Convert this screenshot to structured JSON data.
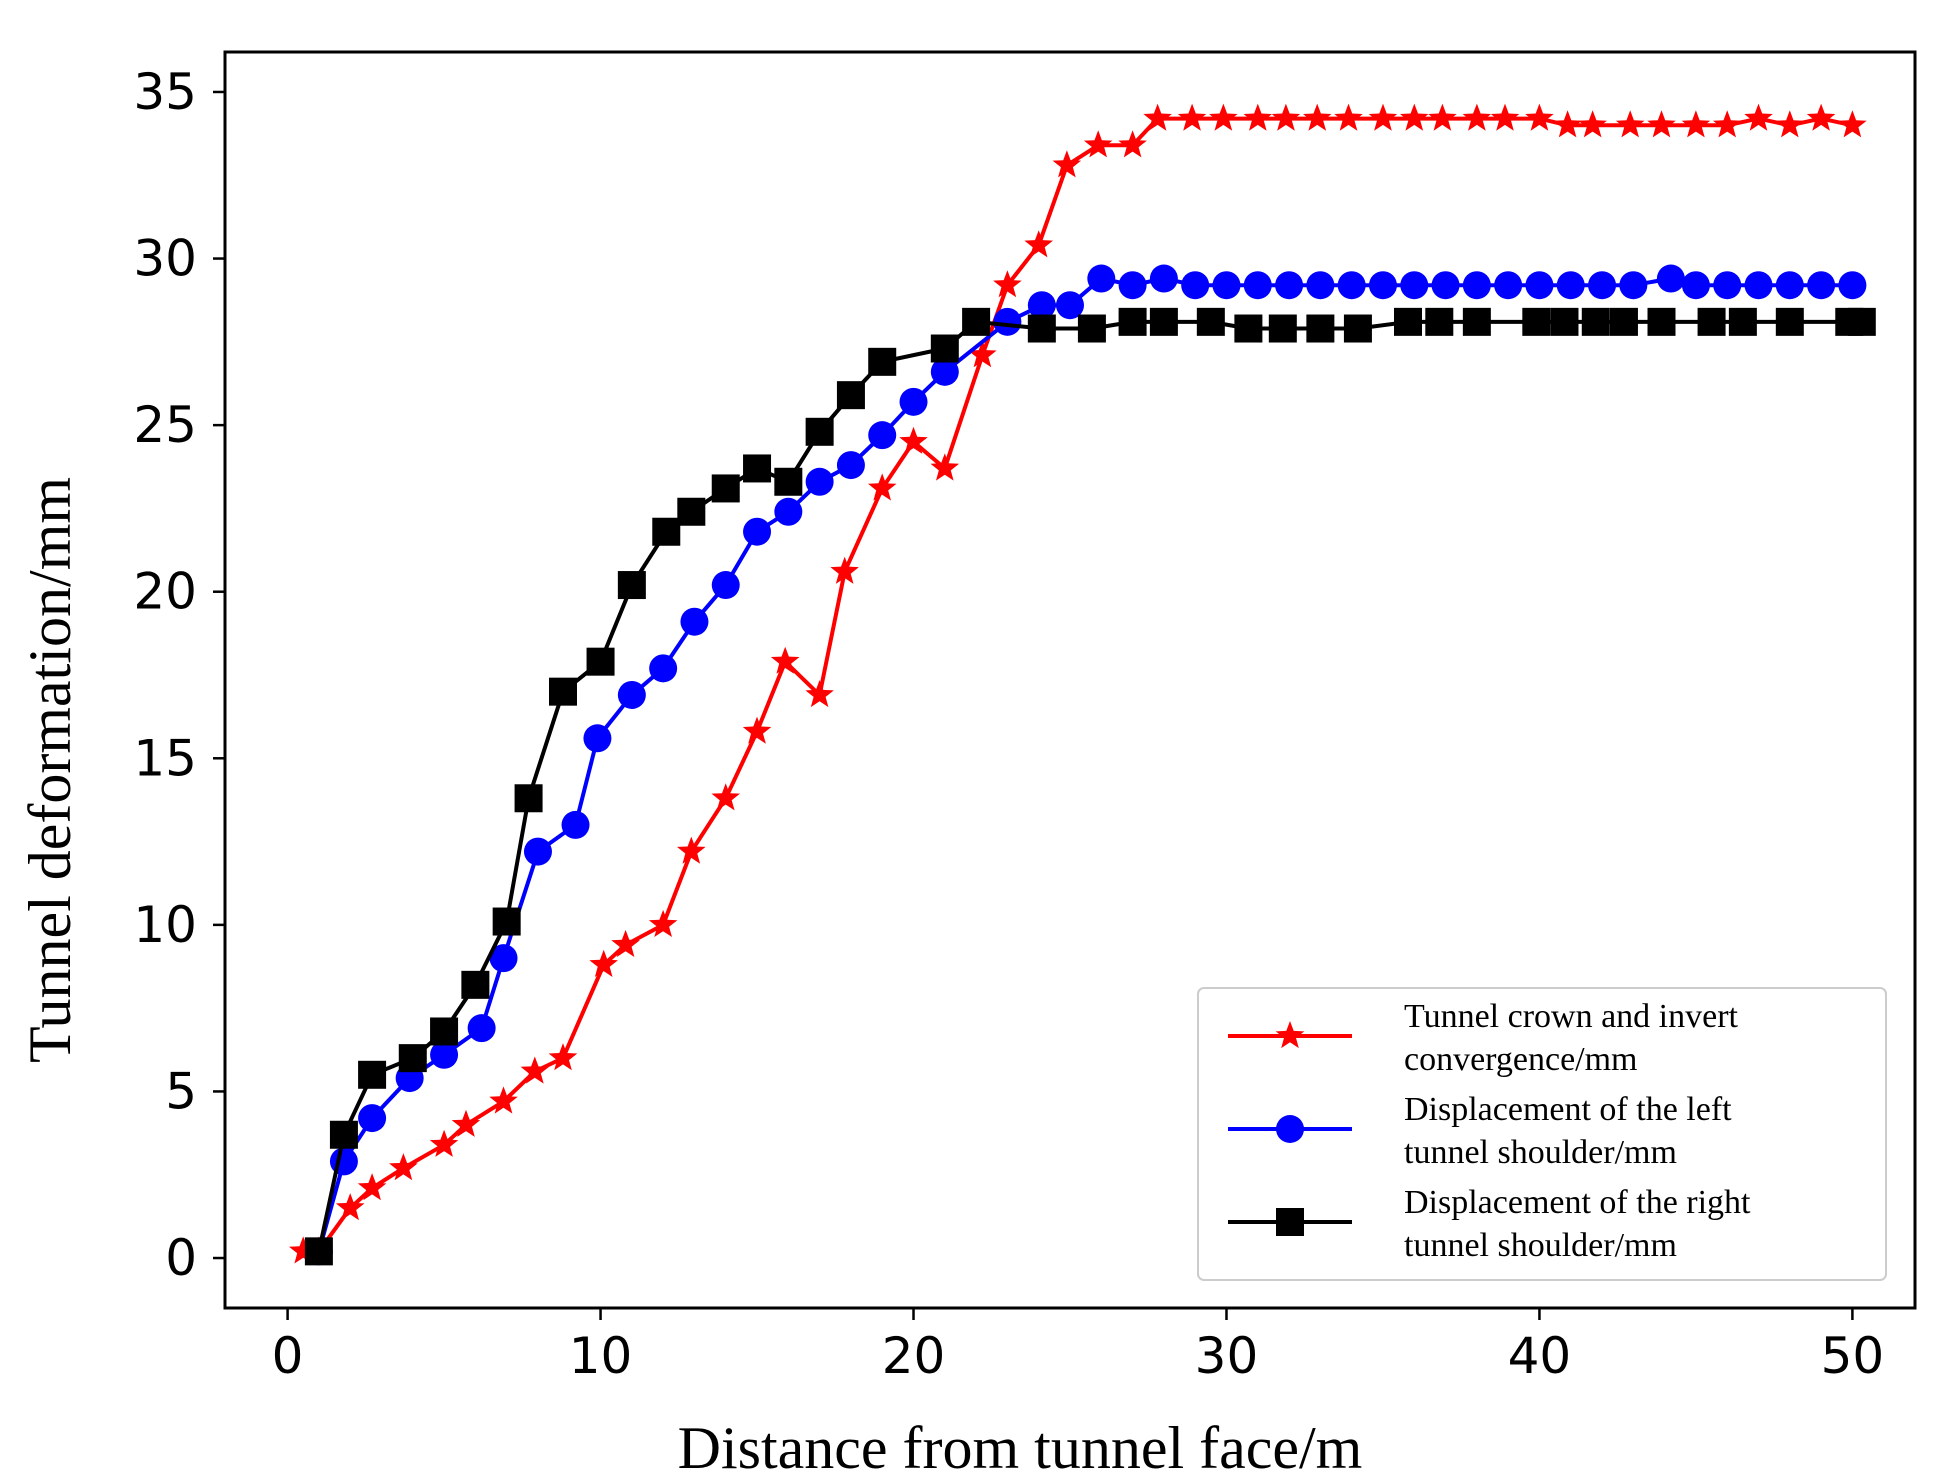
{
  "chart_data": {
    "type": "line",
    "title": "",
    "xlabel": "Distance from tunnel face/m",
    "ylabel": "Tunnel deformation/mm",
    "xlim": [
      -2,
      52
    ],
    "ylim": [
      -1.5,
      36.2
    ],
    "xticks": [
      0,
      10,
      20,
      30,
      40,
      50
    ],
    "yticks": [
      0,
      5,
      10,
      15,
      20,
      25,
      30,
      35
    ],
    "grid": false,
    "legend_position": "lower-right",
    "series": [
      {
        "name": "crown",
        "legend_lines": [
          "Tunnel crown and invert",
          "convergence/mm"
        ],
        "color": "#ff0000",
        "marker": "star",
        "points": [
          [
            0.5,
            0.2
          ],
          [
            1,
            0.2
          ],
          [
            2,
            1.5
          ],
          [
            2.7,
            2.1
          ],
          [
            3.7,
            2.7
          ],
          [
            5,
            3.4
          ],
          [
            5.7,
            4.0
          ],
          [
            6.9,
            4.7
          ],
          [
            7.9,
            5.6
          ],
          [
            8.8,
            6.0
          ],
          [
            10.1,
            8.8
          ],
          [
            10.8,
            9.4
          ],
          [
            12,
            10.0
          ],
          [
            12.9,
            12.2
          ],
          [
            14,
            13.8
          ],
          [
            15,
            15.8
          ],
          [
            15.9,
            17.9
          ],
          [
            17,
            16.9
          ],
          [
            17.8,
            20.6
          ],
          [
            19,
            23.1
          ],
          [
            20,
            24.5
          ],
          [
            21,
            23.7
          ],
          [
            22.2,
            27.1
          ],
          [
            23,
            29.2
          ],
          [
            24,
            30.4
          ],
          [
            24.9,
            32.8
          ],
          [
            25.9,
            33.4
          ],
          [
            27,
            33.4
          ],
          [
            27.8,
            34.2
          ],
          [
            28.9,
            34.2
          ],
          [
            29.9,
            34.2
          ],
          [
            31,
            34.2
          ],
          [
            31.9,
            34.2
          ],
          [
            32.9,
            34.2
          ],
          [
            33.9,
            34.2
          ],
          [
            35,
            34.2
          ],
          [
            36,
            34.2
          ],
          [
            36.9,
            34.2
          ],
          [
            38,
            34.2
          ],
          [
            38.9,
            34.2
          ],
          [
            40,
            34.2
          ],
          [
            40.9,
            34.0
          ],
          [
            41.7,
            34.0
          ],
          [
            42.9,
            34.0
          ],
          [
            43.9,
            34.0
          ],
          [
            45,
            34.0
          ],
          [
            46,
            34.0
          ],
          [
            47,
            34.2
          ],
          [
            48,
            34.0
          ],
          [
            49,
            34.2
          ],
          [
            50,
            34.0
          ]
        ]
      },
      {
        "name": "left",
        "legend_lines": [
          "Displacement of the left",
          "tunnel shoulder/mm"
        ],
        "color": "#0000ff",
        "marker": "circle",
        "points": [
          [
            1,
            0.2
          ],
          [
            1.8,
            2.9
          ],
          [
            2.7,
            4.2
          ],
          [
            3.9,
            5.4
          ],
          [
            5,
            6.1
          ],
          [
            6.2,
            6.9
          ],
          [
            6.9,
            9.0
          ],
          [
            8,
            12.2
          ],
          [
            9.2,
            13.0
          ],
          [
            9.9,
            15.6
          ],
          [
            11,
            16.9
          ],
          [
            12,
            17.7
          ],
          [
            13,
            19.1
          ],
          [
            14,
            20.2
          ],
          [
            15,
            21.8
          ],
          [
            16,
            22.4
          ],
          [
            17,
            23.3
          ],
          [
            18,
            23.8
          ],
          [
            19,
            24.7
          ],
          [
            20,
            25.7
          ],
          [
            21,
            26.6
          ],
          [
            23,
            28.1
          ],
          [
            24.1,
            28.6
          ],
          [
            25,
            28.6
          ],
          [
            26,
            29.4
          ],
          [
            27,
            29.2
          ],
          [
            28,
            29.4
          ],
          [
            29,
            29.2
          ],
          [
            30,
            29.2
          ],
          [
            31,
            29.2
          ],
          [
            32,
            29.2
          ],
          [
            33,
            29.2
          ],
          [
            34,
            29.2
          ],
          [
            35,
            29.2
          ],
          [
            36,
            29.2
          ],
          [
            37,
            29.2
          ],
          [
            38,
            29.2
          ],
          [
            39,
            29.2
          ],
          [
            40,
            29.2
          ],
          [
            41,
            29.2
          ],
          [
            42,
            29.2
          ],
          [
            43,
            29.2
          ],
          [
            44.2,
            29.4
          ],
          [
            45,
            29.2
          ],
          [
            46,
            29.2
          ],
          [
            47,
            29.2
          ],
          [
            48,
            29.2
          ],
          [
            49,
            29.2
          ],
          [
            50,
            29.2
          ]
        ]
      },
      {
        "name": "right",
        "legend_lines": [
          "Displacement of the right",
          "tunnel shoulder/mm"
        ],
        "color": "#000000",
        "marker": "square",
        "points": [
          [
            1,
            0.2
          ],
          [
            1.8,
            3.7
          ],
          [
            2.7,
            5.5
          ],
          [
            4,
            6.0
          ],
          [
            5,
            6.8
          ],
          [
            6,
            8.2
          ],
          [
            7,
            10.1
          ],
          [
            7.7,
            13.8
          ],
          [
            8.8,
            17.0
          ],
          [
            10,
            17.9
          ],
          [
            11,
            20.2
          ],
          [
            12.1,
            21.8
          ],
          [
            12.9,
            22.4
          ],
          [
            14,
            23.1
          ],
          [
            15,
            23.7
          ],
          [
            16,
            23.3
          ],
          [
            17,
            24.8
          ],
          [
            18,
            25.9
          ],
          [
            19,
            26.9
          ],
          [
            21,
            27.3
          ],
          [
            22,
            28.1
          ],
          [
            24.1,
            27.9
          ],
          [
            25.7,
            27.9
          ],
          [
            27,
            28.1
          ],
          [
            28,
            28.1
          ],
          [
            29.5,
            28.1
          ],
          [
            30.7,
            27.9
          ],
          [
            31.8,
            27.9
          ],
          [
            33,
            27.9
          ],
          [
            34.2,
            27.9
          ],
          [
            35.8,
            28.1
          ],
          [
            36.8,
            28.1
          ],
          [
            38,
            28.1
          ],
          [
            39.9,
            28.1
          ],
          [
            40.8,
            28.1
          ],
          [
            41.8,
            28.1
          ],
          [
            42.7,
            28.1
          ],
          [
            43.9,
            28.1
          ],
          [
            45.5,
            28.1
          ],
          [
            46.5,
            28.1
          ],
          [
            48,
            28.1
          ],
          [
            49.9,
            28.1
          ],
          [
            50.3,
            28.1
          ]
        ]
      }
    ]
  }
}
